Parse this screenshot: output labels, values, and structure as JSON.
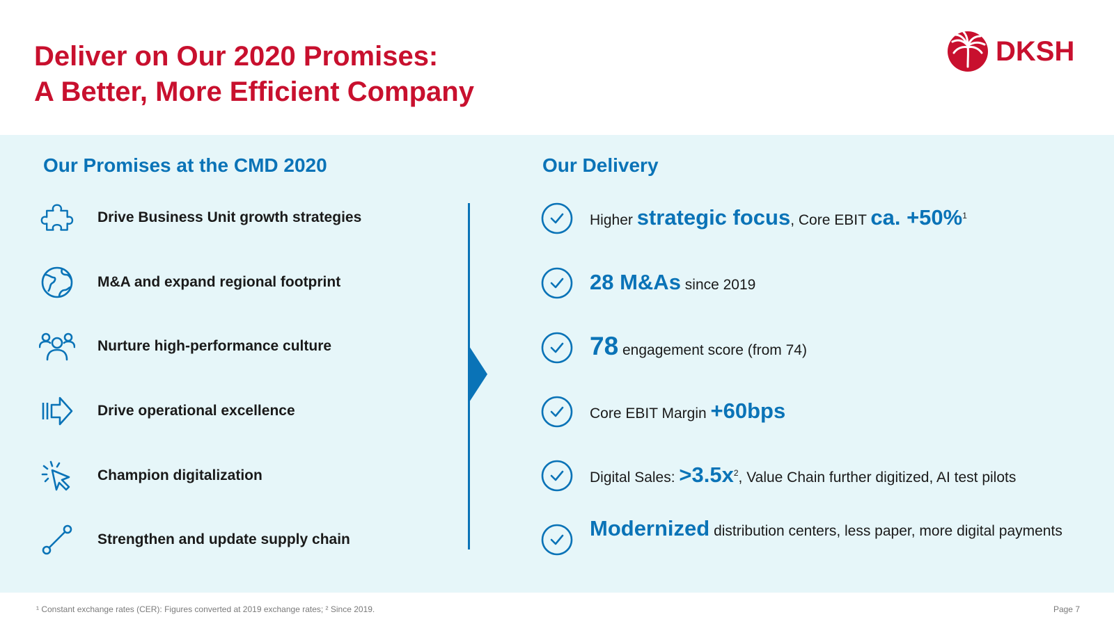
{
  "title": {
    "line1": "Deliver on Our 2020 Promises:",
    "line2": "A Better, More Efficient Company"
  },
  "logo": {
    "text": "DKSH",
    "color": "#c8102e"
  },
  "colors": {
    "accent_red": "#c8102e",
    "accent_blue": "#0a73b7",
    "panel_bg": "#e6f6f9"
  },
  "left": {
    "heading": "Our Promises at the CMD 2020",
    "items": [
      {
        "icon": "puzzle-icon",
        "label": "Drive Business Unit growth strategies"
      },
      {
        "icon": "globe-icon",
        "label": "M&A and expand regional footprint"
      },
      {
        "icon": "people-icon",
        "label": "Nurture high-performance culture"
      },
      {
        "icon": "arrow-right-icon",
        "label": "Drive operational excellence"
      },
      {
        "icon": "cursor-click-icon",
        "label": "Champion digitalization"
      },
      {
        "icon": "route-icon",
        "label": "Strengthen and update supply chain"
      }
    ]
  },
  "right": {
    "heading": "Our Delivery",
    "items": [
      {
        "pre": "Higher ",
        "hl1": "strategic focus",
        "mid": ", Core EBIT ",
        "hl2": "ca. +50%",
        "sup": "1"
      },
      {
        "hl": "28 M&As",
        "post": " since 2019"
      },
      {
        "hl": "78",
        "post": " engagement score (from 74)"
      },
      {
        "pre": "Core EBIT Margin ",
        "hl": "+60bps"
      },
      {
        "pre": "Digital Sales: ",
        "hl": ">3.5x",
        "sup": "2",
        "post": ", Value Chain further digitized, AI test pilots"
      },
      {
        "hl": "Modernized",
        "post": " distribution centers, less paper, more digital payments"
      }
    ]
  },
  "footer": {
    "footnote": "¹ Constant exchange rates (CER): Figures converted at 2019 exchange rates; ² Since 2019.",
    "page": "Page 7"
  }
}
